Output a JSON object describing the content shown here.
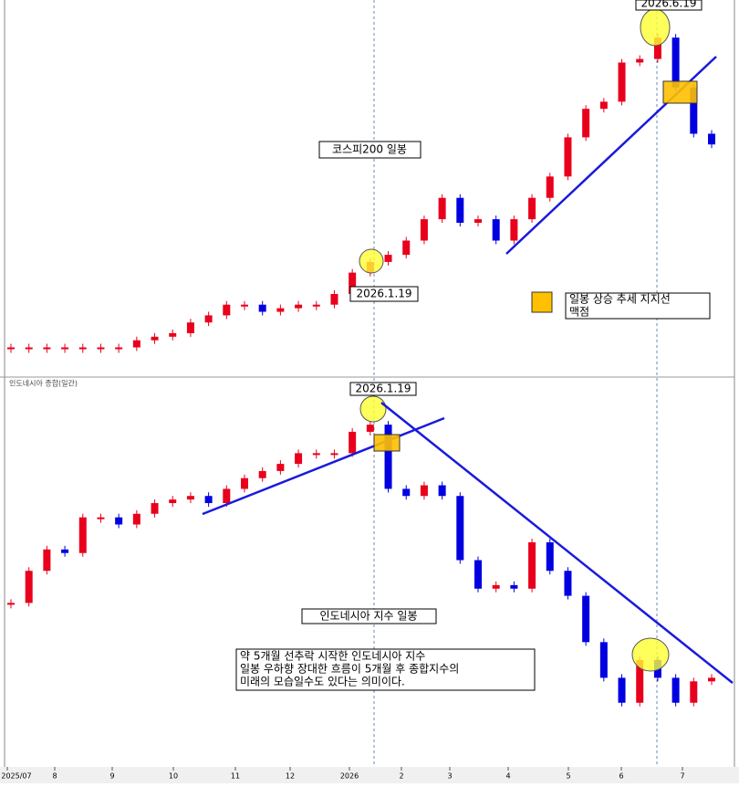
{
  "chart_data": [
    {
      "type": "candlestick",
      "title": "코스피200 일봉",
      "annotations": [
        "2026.1.19",
        "2026.6.19"
      ],
      "legend": [
        "일봉 상승 추세 지지선",
        "맥점"
      ],
      "values": [
        5,
        5,
        5,
        5,
        5,
        5,
        5,
        7,
        8,
        9,
        12,
        14,
        17,
        17,
        15,
        16,
        17,
        17,
        20,
        26,
        29,
        31,
        35,
        41,
        47,
        40,
        41,
        35,
        41,
        47,
        53,
        64,
        72,
        74,
        85,
        86,
        92,
        78,
        65,
        62
      ],
      "ylim": [
        0,
        100
      ],
      "up_color": "#e8001c",
      "down_color": "#0000e0"
    },
    {
      "type": "candlestick",
      "header": "인도네시아 종합(일간)",
      "title": "인도네시아 지수 일봉",
      "annotations": [
        "2026.1.19"
      ],
      "note": [
        "약 5개월 선추락 시작한 인도네시아 지수",
        "일봉 우하향 장대한 흐름이 5개월 후 종합지수의",
        "미래의 모습일수도 있다는 의미이다."
      ],
      "values": [
        46,
        55,
        61,
        60,
        70,
        70,
        68,
        71,
        74,
        75,
        76,
        74,
        78,
        81,
        83,
        85,
        88,
        88,
        88,
        94,
        96,
        78,
        76,
        79,
        76,
        58,
        50,
        51,
        50,
        63,
        55,
        48,
        35,
        25,
        18,
        30,
        25,
        18,
        24,
        25
      ],
      "ylim": [
        0,
        105
      ],
      "up_color": "#e8001c",
      "down_color": "#0000e0"
    }
  ],
  "x_axis_labels": [
    "2025/07",
    "8",
    "9",
    "10",
    "11",
    "12",
    "2026",
    "2",
    "3",
    "4",
    "5",
    "6",
    "7"
  ]
}
